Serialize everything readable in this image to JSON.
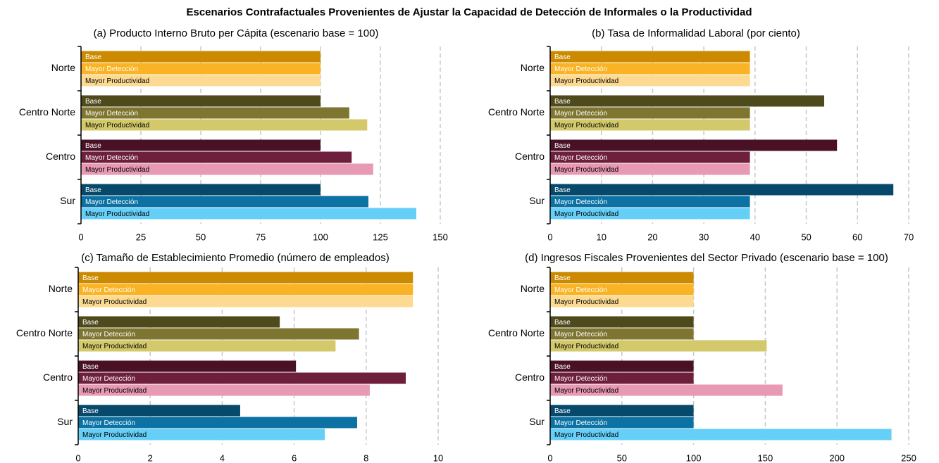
{
  "title": "Escenarios Contrafactuales Provenientes de Ajustar la Capacidad de Detección de Informales o la Productividad",
  "chart_data": [
    {
      "type": "bar",
      "orientation": "horizontal",
      "title": "(a) Producto Interno Bruto per Cápita (escenario base = 100)",
      "categories": [
        "Norte",
        "Centro Norte",
        "Centro",
        "Sur"
      ],
      "series": [
        {
          "name": "Base",
          "colors": [
            "#cc8a00",
            "#4f4a1c",
            "#4a1126",
            "#07496b"
          ],
          "values": [
            100,
            100,
            100,
            100
          ]
        },
        {
          "name": "Mayor Detección",
          "colors": [
            "#f9b324",
            "#7d7530",
            "#6e1f3c",
            "#0b72a3"
          ],
          "values": [
            100,
            112,
            113,
            120
          ]
        },
        {
          "name": "Mayor Productividad",
          "colors": [
            "#fdda92",
            "#d3c96a",
            "#e899b4",
            "#66cff8"
          ],
          "values": [
            100,
            119.5,
            122,
            140
          ]
        }
      ],
      "xlim": [
        0,
        150
      ],
      "xticks": [
        0,
        25,
        50,
        75,
        100,
        125,
        150
      ],
      "grid": true
    },
    {
      "type": "bar",
      "orientation": "horizontal",
      "title": "(b) Tasa de Informalidad Laboral (por ciento)",
      "categories": [
        "Norte",
        "Centro Norte",
        "Centro",
        "Sur"
      ],
      "series": [
        {
          "name": "Base",
          "colors": [
            "#cc8a00",
            "#4f4a1c",
            "#4a1126",
            "#07496b"
          ],
          "values": [
            39,
            53.5,
            56,
            67
          ]
        },
        {
          "name": "Mayor Detección",
          "colors": [
            "#f9b324",
            "#7d7530",
            "#6e1f3c",
            "#0b72a3"
          ],
          "values": [
            39,
            39,
            39,
            39
          ]
        },
        {
          "name": "Mayor Productividad",
          "colors": [
            "#fdda92",
            "#d3c96a",
            "#e899b4",
            "#66cff8"
          ],
          "values": [
            39,
            39,
            39,
            39
          ]
        }
      ],
      "xlim": [
        0,
        70
      ],
      "xticks": [
        0,
        10,
        20,
        30,
        40,
        50,
        60,
        70
      ],
      "grid": true
    },
    {
      "type": "bar",
      "orientation": "horizontal",
      "title": "(c) Tamaño de Establecimiento Promedio (número de empleados)",
      "categories": [
        "Norte",
        "Centro Norte",
        "Centro",
        "Sur"
      ],
      "series": [
        {
          "name": "Base",
          "colors": [
            "#cc8a00",
            "#4f4a1c",
            "#4a1126",
            "#07496b"
          ],
          "values": [
            9.3,
            5.6,
            6.05,
            4.5
          ]
        },
        {
          "name": "Mayor Detección",
          "colors": [
            "#f9b324",
            "#7d7530",
            "#6e1f3c",
            "#0b72a3"
          ],
          "values": [
            9.3,
            7.8,
            9.1,
            7.75
          ]
        },
        {
          "name": "Mayor Productividad",
          "colors": [
            "#fdda92",
            "#d3c96a",
            "#e899b4",
            "#66cff8"
          ],
          "values": [
            9.3,
            7.15,
            8.1,
            6.85
          ]
        }
      ],
      "xlim": [
        0,
        10
      ],
      "xticks": [
        0,
        2,
        4,
        6,
        8,
        10
      ],
      "grid": true
    },
    {
      "type": "bar",
      "orientation": "horizontal",
      "title": "(d) Ingresos Fiscales Provenientes del Sector Privado (escenario base = 100)",
      "categories": [
        "Norte",
        "Centro Norte",
        "Centro",
        "Sur"
      ],
      "series": [
        {
          "name": "Base",
          "colors": [
            "#cc8a00",
            "#4f4a1c",
            "#4a1126",
            "#07496b"
          ],
          "values": [
            100,
            100,
            100,
            100
          ]
        },
        {
          "name": "Mayor Detección",
          "colors": [
            "#f9b324",
            "#7d7530",
            "#6e1f3c",
            "#0b72a3"
          ],
          "values": [
            100,
            100,
            100,
            100
          ]
        },
        {
          "name": "Mayor Productividad",
          "colors": [
            "#fdda92",
            "#d3c96a",
            "#e899b4",
            "#66cff8"
          ],
          "values": [
            100,
            151,
            162,
            238
          ]
        }
      ],
      "xlim": [
        0,
        250
      ],
      "xticks": [
        0,
        50,
        100,
        150,
        200,
        250
      ],
      "grid": true
    }
  ]
}
